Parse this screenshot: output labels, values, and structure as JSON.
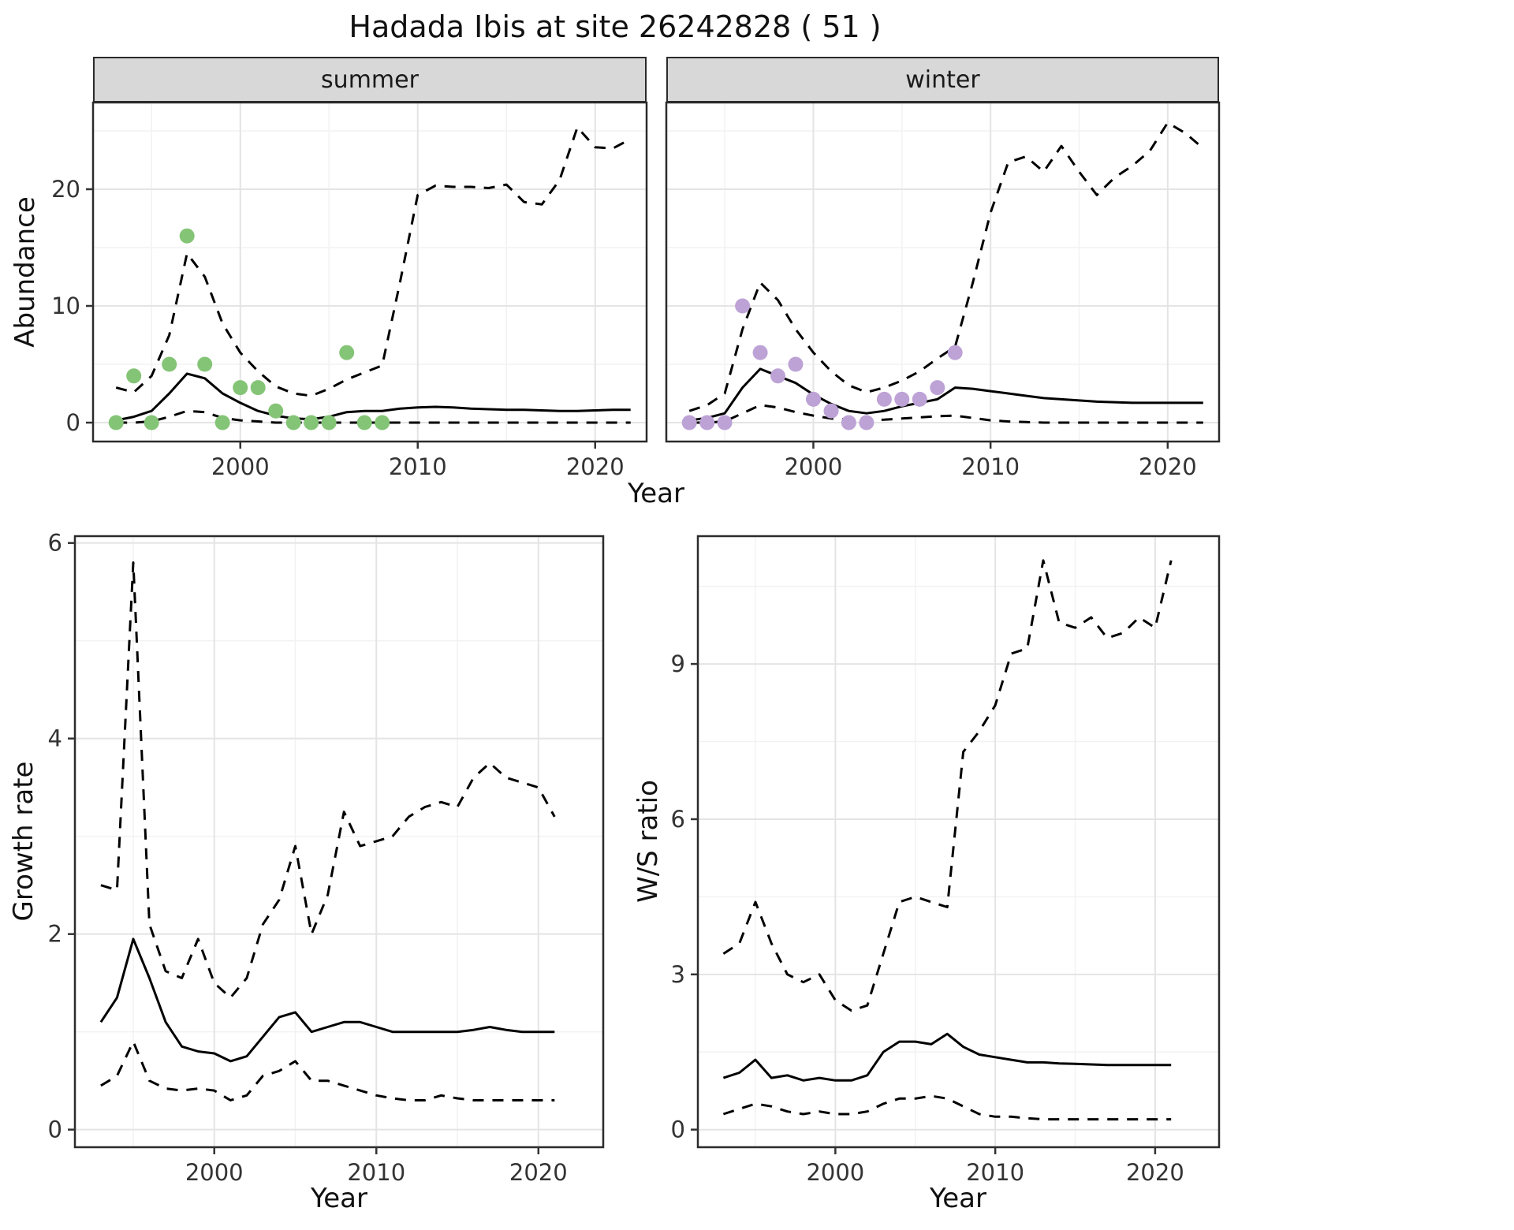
{
  "title": "Hadada Ibis at site 26242828 ( 51 )",
  "facets": [
    {
      "label": "summer"
    },
    {
      "label": "winter"
    }
  ],
  "axes": {
    "x_label": "Year",
    "abundance_label": "Abundance",
    "growth_label": "Growth rate",
    "ws_label": "W/S ratio"
  },
  "colors": {
    "line": "#000000",
    "grid_major": "#e4e4e4",
    "grid_minor": "#f2f2f2",
    "panel_bg": "#ffffff",
    "panel_border": "#2b2b2b",
    "strip_bg": "#d8d8d8",
    "tick": "#333333",
    "tick_text": "#333333",
    "summer_points": "#84c476",
    "winter_points": "#bda2d6"
  },
  "chart_data": [
    {
      "id": "abundance_summer",
      "type": "line",
      "facet": "summer",
      "ylabel": "Abundance",
      "xlabel": "Year",
      "x_range": [
        1991.7,
        2022.9
      ],
      "y_range": [
        -1.62,
        27.43
      ],
      "x_ticks": [
        2000,
        2010,
        2020
      ],
      "y_ticks": [
        0,
        10,
        20
      ],
      "x_minor": [
        1995,
        2005,
        2015
      ],
      "y_minor": [
        5,
        15,
        25
      ],
      "y_axis": true,
      "x": [
        1993,
        1994,
        1995,
        1996,
        1997,
        1998,
        1999,
        2000,
        2001,
        2002,
        2003,
        2004,
        2005,
        2006,
        2007,
        2008,
        2009,
        2010,
        2011,
        2012,
        2013,
        2014,
        2015,
        2016,
        2017,
        2018,
        2019,
        2020,
        2021,
        2022
      ],
      "series": [
        {
          "name": "mean",
          "style": "solid",
          "values": [
            0.2,
            0.5,
            1.0,
            2.5,
            4.2,
            3.8,
            2.5,
            1.7,
            1.0,
            0.6,
            0.35,
            0.3,
            0.5,
            0.9,
            1.0,
            1.0,
            1.2,
            1.3,
            1.35,
            1.3,
            1.2,
            1.15,
            1.1,
            1.1,
            1.05,
            1.0,
            1.0,
            1.05,
            1.1,
            1.1
          ]
        },
        {
          "name": "upper_ci",
          "style": "dashed",
          "values": [
            3.0,
            2.6,
            4.0,
            7.5,
            14.5,
            12.5,
            8.5,
            6.0,
            4.4,
            3.1,
            2.5,
            2.3,
            2.9,
            3.7,
            4.3,
            4.9,
            12.0,
            19.5,
            20.3,
            20.2,
            20.2,
            20.1,
            20.4,
            18.9,
            18.7,
            20.8,
            25.3,
            23.6,
            23.5,
            24.3
          ]
        },
        {
          "name": "lower_ci",
          "style": "dashed",
          "values": [
            0,
            0,
            0.1,
            0.5,
            1.0,
            0.9,
            0.4,
            0.2,
            0.1,
            0,
            0,
            0,
            0,
            0,
            0,
            0,
            0,
            0,
            0,
            0,
            0,
            0,
            0,
            0,
            0,
            0,
            0,
            0,
            0,
            0
          ]
        }
      ],
      "points": {
        "name": "observed-counts-summer",
        "color_key": "summer_points",
        "x": [
          1993,
          1994,
          1995,
          1996,
          1997,
          1998,
          1999,
          2000,
          2001,
          2002,
          2003,
          2004,
          2005,
          2006,
          2007,
          2008
        ],
        "y": [
          0,
          4,
          0,
          5,
          16,
          5,
          0,
          3,
          3,
          1,
          0,
          0,
          0,
          6,
          0,
          0
        ]
      }
    },
    {
      "id": "abundance_winter",
      "type": "line",
      "facet": "winter",
      "ylabel": "Abundance",
      "xlabel": "Year",
      "x_range": [
        1991.7,
        2022.9
      ],
      "y_range": [
        -1.62,
        27.43
      ],
      "x_ticks": [
        2000,
        2010,
        2020
      ],
      "y_ticks": [
        0,
        10,
        20
      ],
      "x_minor": [
        1995,
        2005,
        2015
      ],
      "y_minor": [
        5,
        15,
        25
      ],
      "y_axis": false,
      "x": [
        1993,
        1994,
        1995,
        1996,
        1997,
        1998,
        1999,
        2000,
        2001,
        2002,
        2003,
        2004,
        2005,
        2006,
        2007,
        2008,
        2009,
        2010,
        2011,
        2012,
        2013,
        2014,
        2015,
        2016,
        2017,
        2018,
        2019,
        2020,
        2021,
        2022
      ],
      "series": [
        {
          "name": "mean",
          "style": "solid",
          "values": [
            0.2,
            0.4,
            0.8,
            3.0,
            4.6,
            4.0,
            3.4,
            2.4,
            1.6,
            1.0,
            0.8,
            1.0,
            1.4,
            1.7,
            2.0,
            3.0,
            2.9,
            2.7,
            2.5,
            2.3,
            2.1,
            2.0,
            1.9,
            1.8,
            1.75,
            1.7,
            1.7,
            1.7,
            1.7,
            1.7
          ]
        },
        {
          "name": "upper_ci",
          "style": "dashed",
          "values": [
            1.0,
            1.5,
            2.5,
            8.0,
            12.0,
            10.5,
            8.0,
            6.0,
            4.4,
            3.2,
            2.6,
            3.0,
            3.6,
            4.4,
            5.5,
            6.5,
            12.0,
            18.0,
            22.3,
            22.8,
            21.5,
            23.7,
            21.5,
            19.5,
            21.0,
            22.0,
            23.3,
            25.7,
            24.8,
            23.5
          ]
        },
        {
          "name": "lower_ci",
          "style": "dashed",
          "values": [
            0,
            0,
            0.1,
            0.8,
            1.5,
            1.3,
            0.9,
            0.6,
            0.35,
            0.25,
            0.2,
            0.25,
            0.35,
            0.45,
            0.55,
            0.6,
            0.4,
            0.2,
            0.1,
            0.05,
            0,
            0,
            0,
            0,
            0,
            0,
            0,
            0,
            0,
            0
          ]
        }
      ],
      "points": {
        "name": "observed-counts-winter",
        "color_key": "winter_points",
        "x": [
          1993,
          1994,
          1995,
          1996,
          1997,
          1998,
          1999,
          2000,
          2001,
          2002,
          2003,
          2004,
          2005,
          2006,
          2007,
          2008
        ],
        "y": [
          0,
          0,
          0,
          10,
          6,
          4,
          5,
          2,
          1,
          0,
          0,
          2,
          2,
          2,
          3,
          6
        ]
      }
    },
    {
      "id": "growth_rate",
      "type": "line",
      "ylabel": "Growth rate",
      "xlabel": "Year",
      "x_range": [
        1991.4,
        2024.0
      ],
      "y_range": [
        -0.18,
        6.07
      ],
      "x_ticks": [
        2000,
        2010,
        2020
      ],
      "y_ticks": [
        0,
        2,
        4,
        6
      ],
      "x_minor": [
        1995,
        2005,
        2015
      ],
      "y_minor": [
        1,
        3,
        5
      ],
      "y_axis": true,
      "x": [
        1993,
        1994,
        1995,
        1996,
        1997,
        1998,
        1999,
        2000,
        2001,
        2002,
        2003,
        2004,
        2005,
        2006,
        2007,
        2008,
        2009,
        2010,
        2011,
        2012,
        2013,
        2014,
        2015,
        2016,
        2017,
        2018,
        2019,
        2020,
        2021
      ],
      "series": [
        {
          "name": "mean",
          "style": "solid",
          "values": [
            1.1,
            1.35,
            1.95,
            1.55,
            1.1,
            0.85,
            0.8,
            0.78,
            0.7,
            0.75,
            0.95,
            1.15,
            1.2,
            1.0,
            1.05,
            1.1,
            1.1,
            1.05,
            1.0,
            1.0,
            1.0,
            1.0,
            1.0,
            1.02,
            1.05,
            1.02,
            1.0,
            1.0,
            1.0
          ]
        },
        {
          "name": "upper_ci",
          "style": "dashed",
          "values": [
            2.5,
            2.45,
            5.8,
            2.1,
            1.62,
            1.55,
            1.95,
            1.5,
            1.35,
            1.55,
            2.1,
            2.35,
            2.9,
            2.0,
            2.4,
            3.25,
            2.9,
            2.95,
            3.0,
            3.2,
            3.3,
            3.35,
            3.3,
            3.6,
            3.75,
            3.6,
            3.55,
            3.5,
            3.2
          ]
        },
        {
          "name": "lower_ci",
          "style": "dashed",
          "values": [
            0.45,
            0.55,
            0.9,
            0.5,
            0.42,
            0.4,
            0.42,
            0.4,
            0.3,
            0.35,
            0.55,
            0.6,
            0.7,
            0.5,
            0.5,
            0.45,
            0.4,
            0.35,
            0.32,
            0.3,
            0.3,
            0.35,
            0.32,
            0.3,
            0.3,
            0.3,
            0.3,
            0.3,
            0.3
          ]
        }
      ]
    },
    {
      "id": "ws_ratio",
      "type": "line",
      "ylabel": "W/S ratio",
      "xlabel": "Year",
      "x_range": [
        1991.4,
        2024.0
      ],
      "y_range": [
        -0.34,
        11.47
      ],
      "x_ticks": [
        2000,
        2010,
        2020
      ],
      "y_ticks": [
        0,
        3,
        6,
        9
      ],
      "x_minor": [
        1995,
        2005,
        2015
      ],
      "y_minor": [
        1.5,
        4.5,
        7.5,
        10.5
      ],
      "y_axis": true,
      "x": [
        1993,
        1994,
        1995,
        1996,
        1997,
        1998,
        1999,
        2000,
        2001,
        2002,
        2003,
        2004,
        2005,
        2006,
        2007,
        2008,
        2009,
        2010,
        2011,
        2012,
        2013,
        2014,
        2015,
        2016,
        2017,
        2018,
        2019,
        2020,
        2021
      ],
      "series": [
        {
          "name": "mean",
          "style": "solid",
          "values": [
            1.0,
            1.1,
            1.35,
            1.0,
            1.05,
            0.95,
            1.0,
            0.95,
            0.95,
            1.05,
            1.5,
            1.7,
            1.7,
            1.65,
            1.85,
            1.6,
            1.45,
            1.4,
            1.35,
            1.3,
            1.3,
            1.28,
            1.27,
            1.26,
            1.25,
            1.25,
            1.25,
            1.25,
            1.25
          ]
        },
        {
          "name": "upper_ci",
          "style": "dashed",
          "values": [
            3.4,
            3.6,
            4.4,
            3.6,
            3.0,
            2.85,
            3.0,
            2.5,
            2.3,
            2.4,
            3.4,
            4.4,
            4.5,
            4.4,
            4.3,
            7.3,
            7.7,
            8.2,
            9.2,
            9.3,
            11.0,
            9.8,
            9.7,
            9.9,
            9.5,
            9.6,
            9.9,
            9.7,
            11.0
          ]
        },
        {
          "name": "lower_ci",
          "style": "dashed",
          "values": [
            0.3,
            0.4,
            0.5,
            0.45,
            0.35,
            0.3,
            0.35,
            0.3,
            0.3,
            0.35,
            0.5,
            0.6,
            0.6,
            0.65,
            0.6,
            0.45,
            0.3,
            0.25,
            0.25,
            0.22,
            0.2,
            0.2,
            0.2,
            0.2,
            0.2,
            0.2,
            0.2,
            0.2,
            0.2
          ]
        }
      ]
    }
  ]
}
